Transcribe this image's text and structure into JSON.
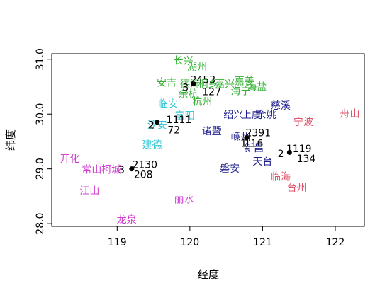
{
  "chart_data": {
    "type": "scatter",
    "xlabel": "经度",
    "ylabel": "纬度",
    "xlim": [
      118.1,
      122.4
    ],
    "ylim": [
      27.95,
      31.1
    ],
    "x_ticks": [
      "119",
      "120",
      "121",
      "122"
    ],
    "y_ticks": [
      "28.0",
      "29.0",
      "30.0",
      "31.0"
    ],
    "grid": false,
    "colors": {
      "red": "#DF536B",
      "green": "#35B035",
      "blue": "#1E1E8C",
      "cyan": "#37C8D8",
      "magenta": "#D03FD0",
      "black": "#000000"
    },
    "points": [
      {
        "x": 120.05,
        "y": 30.55
      },
      {
        "x": 119.55,
        "y": 29.85
      },
      {
        "x": 120.78,
        "y": 29.57
      },
      {
        "x": 121.37,
        "y": 29.3
      },
      {
        "x": 119.2,
        "y": 29.0
      }
    ],
    "labels": [
      {
        "text": "长兴",
        "x": 119.91,
        "y": 30.98,
        "color": "green"
      },
      {
        "text": "湖州",
        "x": 120.1,
        "y": 30.87,
        "color": "green"
      },
      {
        "text": "安吉",
        "x": 119.68,
        "y": 30.58,
        "color": "green"
      },
      {
        "text": "德清",
        "x": 120.0,
        "y": 30.55,
        "color": "green"
      },
      {
        "text": "桐乡",
        "x": 120.25,
        "y": 30.55,
        "color": "green"
      },
      {
        "text": "嘉善",
        "x": 120.75,
        "y": 30.6,
        "color": "green"
      },
      {
        "text": "嘉兴",
        "x": 120.48,
        "y": 30.55,
        "color": "green"
      },
      {
        "text": "海盐",
        "x": 120.92,
        "y": 30.5,
        "color": "green"
      },
      {
        "text": "余杭",
        "x": 119.98,
        "y": 30.37,
        "color": "green"
      },
      {
        "text": "海宁",
        "x": 120.7,
        "y": 30.42,
        "color": "green"
      },
      {
        "text": "杭州",
        "x": 120.17,
        "y": 30.23,
        "color": "green"
      },
      {
        "text": "临安",
        "x": 119.7,
        "y": 30.19,
        "color": "cyan"
      },
      {
        "text": "富阳",
        "x": 119.93,
        "y": 29.97,
        "color": "cyan"
      },
      {
        "text": "淳安",
        "x": 119.55,
        "y": 29.8,
        "color": "cyan"
      },
      {
        "text": "建德",
        "x": 119.48,
        "y": 29.44,
        "color": "cyan"
      },
      {
        "text": "慈溪",
        "x": 121.25,
        "y": 30.16,
        "color": "blue"
      },
      {
        "text": "绍兴",
        "x": 120.6,
        "y": 29.99,
        "color": "blue"
      },
      {
        "text": "上虞",
        "x": 120.85,
        "y": 29.99,
        "color": "blue"
      },
      {
        "text": "余姚",
        "x": 121.05,
        "y": 29.99,
        "color": "blue"
      },
      {
        "text": "诸暨",
        "x": 120.3,
        "y": 29.69,
        "color": "blue"
      },
      {
        "text": "嵊州",
        "x": 120.7,
        "y": 29.58,
        "color": "blue"
      },
      {
        "text": "新昌",
        "x": 120.88,
        "y": 29.38,
        "color": "blue"
      },
      {
        "text": "天台",
        "x": 121.0,
        "y": 29.14,
        "color": "blue"
      },
      {
        "text": "磐安",
        "x": 120.55,
        "y": 29.01,
        "color": "blue"
      },
      {
        "text": "宁波",
        "x": 121.56,
        "y": 29.86,
        "color": "red"
      },
      {
        "text": "舟山",
        "x": 122.2,
        "y": 30.01,
        "color": "red"
      },
      {
        "text": "临海",
        "x": 121.25,
        "y": 28.86,
        "color": "red"
      },
      {
        "text": "台州",
        "x": 121.47,
        "y": 28.66,
        "color": "red"
      },
      {
        "text": "开化",
        "x": 118.35,
        "y": 29.19,
        "color": "magenta"
      },
      {
        "text": "常山",
        "x": 118.65,
        "y": 28.99,
        "color": "magenta"
      },
      {
        "text": "柯城",
        "x": 118.92,
        "y": 28.99,
        "color": "magenta"
      },
      {
        "text": "江山",
        "x": 118.62,
        "y": 28.6,
        "color": "magenta"
      },
      {
        "text": "龙泉",
        "x": 119.13,
        "y": 28.07,
        "color": "magenta"
      },
      {
        "text": "丽水",
        "x": 119.92,
        "y": 28.45,
        "color": "magenta"
      }
    ],
    "cluster_labels": [
      {
        "text": "2453",
        "x": 120.18,
        "y": 30.63,
        "color": "black"
      },
      {
        "text": "3",
        "x": 119.94,
        "y": 30.49,
        "color": "black"
      },
      {
        "text": "127",
        "x": 120.3,
        "y": 30.41,
        "color": "black"
      },
      {
        "text": "1111",
        "x": 119.85,
        "y": 29.9,
        "color": "black"
      },
      {
        "text": "2",
        "x": 119.47,
        "y": 29.8,
        "color": "black"
      },
      {
        "text": "72",
        "x": 119.78,
        "y": 29.71,
        "color": "black"
      },
      {
        "text": "2391",
        "x": 120.94,
        "y": 29.66,
        "color": "black"
      },
      {
        "text": "1",
        "x": 120.74,
        "y": 29.47,
        "color": "black"
      },
      {
        "text": "116",
        "x": 120.88,
        "y": 29.47,
        "color": "black"
      },
      {
        "text": "1119",
        "x": 121.5,
        "y": 29.37,
        "color": "black"
      },
      {
        "text": "2",
        "x": 121.25,
        "y": 29.28,
        "color": "black"
      },
      {
        "text": "134",
        "x": 121.6,
        "y": 29.19,
        "color": "black"
      },
      {
        "text": "2130",
        "x": 119.38,
        "y": 29.08,
        "color": "black"
      },
      {
        "text": "3",
        "x": 119.06,
        "y": 28.98,
        "color": "black"
      },
      {
        "text": "208",
        "x": 119.36,
        "y": 28.9,
        "color": "black"
      }
    ]
  }
}
